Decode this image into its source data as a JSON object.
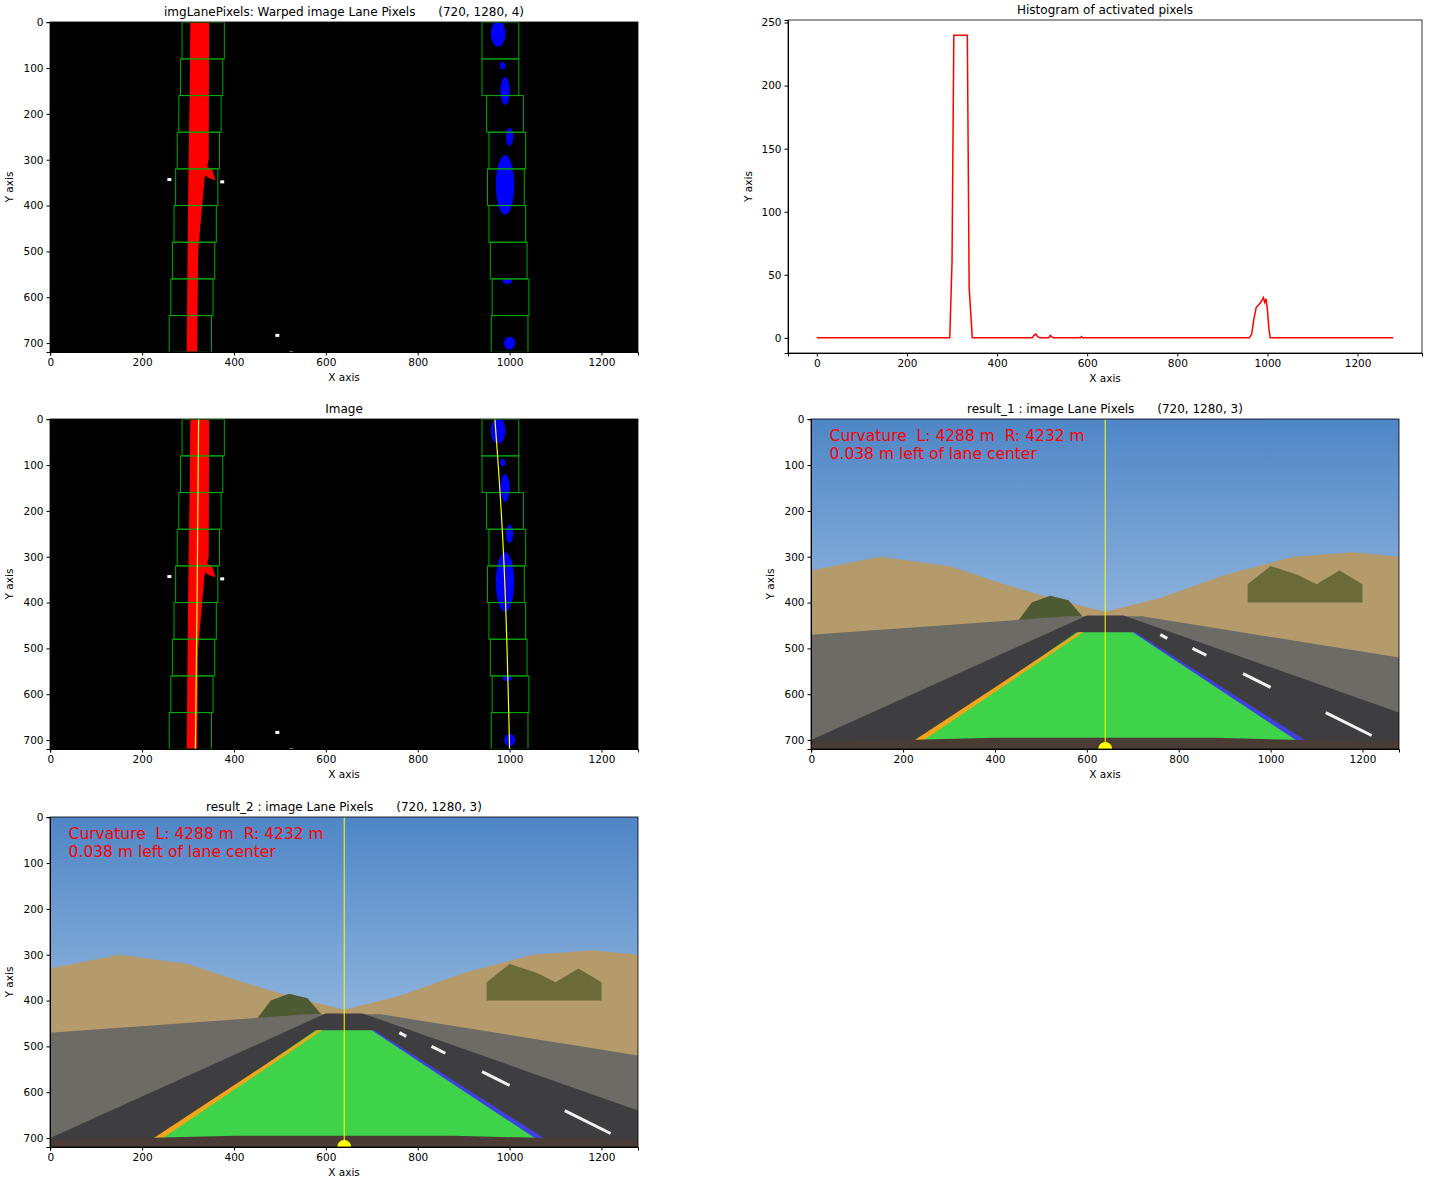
{
  "chart_data": [
    {
      "type": "image",
      "title": "imgLanePixels: Warped image Lane Pixels      (720, 1280, 4)",
      "xlabel": "X axis",
      "ylabel": "Y axis",
      "xlim": [
        -0.5,
        1279.5
      ],
      "ylim": [
        719.5,
        -0.5
      ],
      "xticks": [
        0,
        200,
        400,
        600,
        800,
        1000,
        1200
      ],
      "yticks": [
        0,
        100,
        200,
        300,
        400,
        500,
        600,
        700
      ]
    },
    {
      "type": "line",
      "title": "Histogram of activated pixels",
      "xlabel": "X axis",
      "ylabel": "Y axis",
      "color": "#ff0000",
      "x": [
        0,
        100,
        200,
        295,
        300,
        304,
        310,
        320,
        330,
        334,
        338,
        345,
        400,
        478,
        482,
        486,
        490,
        495,
        515,
        518,
        521,
        525,
        585,
        587,
        590,
        700,
        800,
        900,
        960,
        965,
        970,
        975,
        980,
        985,
        988,
        991,
        994,
        997,
        1000,
        1003,
        1006,
        1010,
        1100,
        1200,
        1279
      ],
      "values": [
        0,
        0,
        0,
        0,
        60,
        240,
        240,
        240,
        240,
        240,
        40,
        0,
        0,
        0,
        2,
        3,
        1,
        0,
        0,
        2,
        1,
        0,
        0,
        1,
        0,
        0,
        0,
        0,
        0,
        3,
        15,
        24,
        26,
        28,
        30,
        32,
        28,
        31,
        22,
        8,
        0,
        0,
        0,
        0,
        0
      ],
      "xlim": [
        -64,
        1343
      ],
      "ylim": [
        -12,
        252
      ],
      "xticks": [
        0,
        200,
        400,
        600,
        800,
        1000,
        1200
      ],
      "yticks": [
        0,
        50,
        100,
        150,
        200,
        250
      ]
    },
    {
      "type": "image",
      "title": "Image",
      "xlabel": "X axis",
      "ylabel": "Y axis",
      "xlim": [
        -0.5,
        1279.5
      ],
      "ylim": [
        719.5,
        -0.5
      ],
      "xticks": [
        0,
        200,
        400,
        600,
        800,
        1000,
        1200
      ],
      "yticks": [
        0,
        100,
        200,
        300,
        400,
        500,
        600,
        700
      ]
    },
    {
      "type": "image",
      "title": "result_1 : image Lane Pixels      (720, 1280, 3)",
      "xlabel": "X axis",
      "ylabel": "Y axis",
      "xlim": [
        -0.5,
        1279.5
      ],
      "ylim": [
        719.5,
        -0.5
      ],
      "xticks": [
        0,
        200,
        400,
        600,
        800,
        1000,
        1200
      ],
      "yticks": [
        0,
        100,
        200,
        300,
        400,
        500,
        600,
        700
      ],
      "annotations": [
        "Curvature  L: 4288 m  R: 4232 m",
        "0.038 m left of lane center"
      ]
    },
    {
      "type": "image",
      "title": "result_2 : image Lane Pixels      (720, 1280, 3)",
      "xlabel": "X axis",
      "ylabel": "Y axis",
      "xlim": [
        -0.5,
        1279.5
      ],
      "ylim": [
        719.5,
        -0.5
      ],
      "xticks": [
        0,
        200,
        400,
        600,
        800,
        1000,
        1200
      ],
      "yticks": [
        0,
        100,
        200,
        300,
        400,
        500,
        600,
        700
      ],
      "annotations": [
        "Curvature  L: 4288 m  R: 4232 m",
        "0.038 m left of lane center"
      ]
    }
  ]
}
